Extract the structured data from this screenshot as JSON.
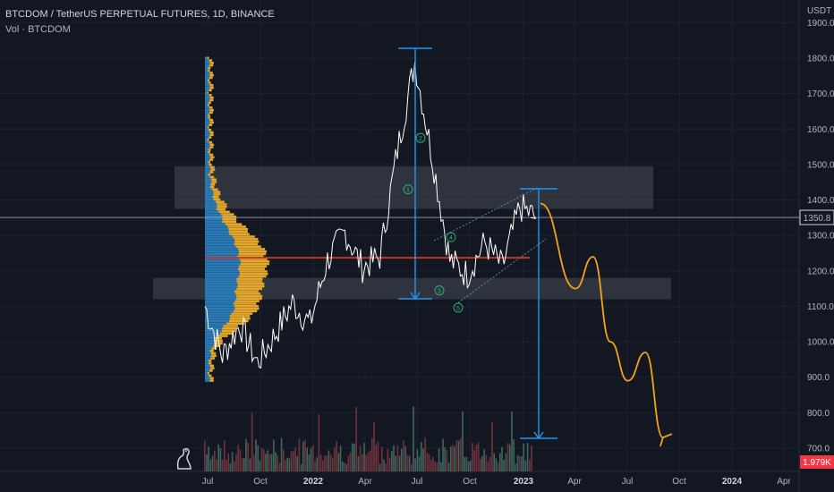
{
  "header": {
    "symbol_title": "BTCDOM / TetherUS PERPETUAL FUTURES, 1D, BINANCE",
    "indicator_label": "Vol · BTCDOM"
  },
  "colors": {
    "background": "#131722",
    "grid": "#1e222d",
    "price_line": "#ffffff",
    "zone": "#3a3d47",
    "arrow": "#2196f3",
    "projection": "#f7a21b",
    "poc": "#c2352c",
    "profile_blue": "#2a7ab7",
    "profile_orange": "#e3a72b",
    "vol_red_badge": "#f23645"
  },
  "price_axis": {
    "unit_label": "USDT",
    "ticks": [
      "1900.0",
      "1800.0",
      "1700.0",
      "1600.0",
      "1500.0",
      "1400.0",
      "1300.0",
      "1200.0",
      "1100.0",
      "1000.0",
      "900.0",
      "800.0",
      "700.0"
    ],
    "current_price_label": "1350.8",
    "volume_label": "1.979K"
  },
  "time_axis": {
    "ticks": [
      {
        "label": "Jul",
        "bold": false
      },
      {
        "label": "Oct",
        "bold": false
      },
      {
        "label": "2022",
        "bold": true
      },
      {
        "label": "Apr",
        "bold": false
      },
      {
        "label": "Jul",
        "bold": false
      },
      {
        "label": "Oct",
        "bold": false
      },
      {
        "label": "2023",
        "bold": true
      },
      {
        "label": "Apr",
        "bold": false
      },
      {
        "label": "Jul",
        "bold": false
      },
      {
        "label": "Oct",
        "bold": false
      },
      {
        "label": "2024",
        "bold": true
      },
      {
        "label": "Apr",
        "bold": false
      }
    ]
  },
  "chart_data": {
    "type": "line",
    "series": [
      {
        "x": [
          "2021-06",
          "2021-07",
          "2021-08",
          "2021-09",
          "2021-10",
          "2021-11",
          "2021-12",
          "2022-01",
          "2022-02",
          "2022-03",
          "2022-04",
          "2022-05",
          "2022-06",
          "2022-07",
          "2022-08",
          "2022-09",
          "2022-10",
          "2022-11",
          "2022-12",
          "2023-01"
        ],
        "y": [
          1100,
          960,
          1050,
          940,
          1020,
          1110,
          1050,
          1230,
          1310,
          1210,
          1240,
          1540,
          1790,
          1520,
          1230,
          1190,
          1280,
          1210,
          1380,
          1350
        ]
      }
    ],
    "ylim": [
      680,
      1920
    ],
    "projection": [
      {
        "x": "2023-02",
        "y": 1390
      },
      {
        "x": "2023-04",
        "y": 1150
      },
      {
        "x": "2023-05",
        "y": 1240
      },
      {
        "x": "2023-06",
        "y": 1000
      },
      {
        "x": "2023-07",
        "y": 890
      },
      {
        "x": "2023-08",
        "y": 970
      },
      {
        "x": "2023-09",
        "y": 730
      }
    ],
    "zones": [
      {
        "from": 1375,
        "to": 1495
      },
      {
        "from": 1120,
        "to": 1180
      }
    ],
    "annotations": [
      "1",
      "2",
      "3",
      "4",
      "5"
    ]
  }
}
